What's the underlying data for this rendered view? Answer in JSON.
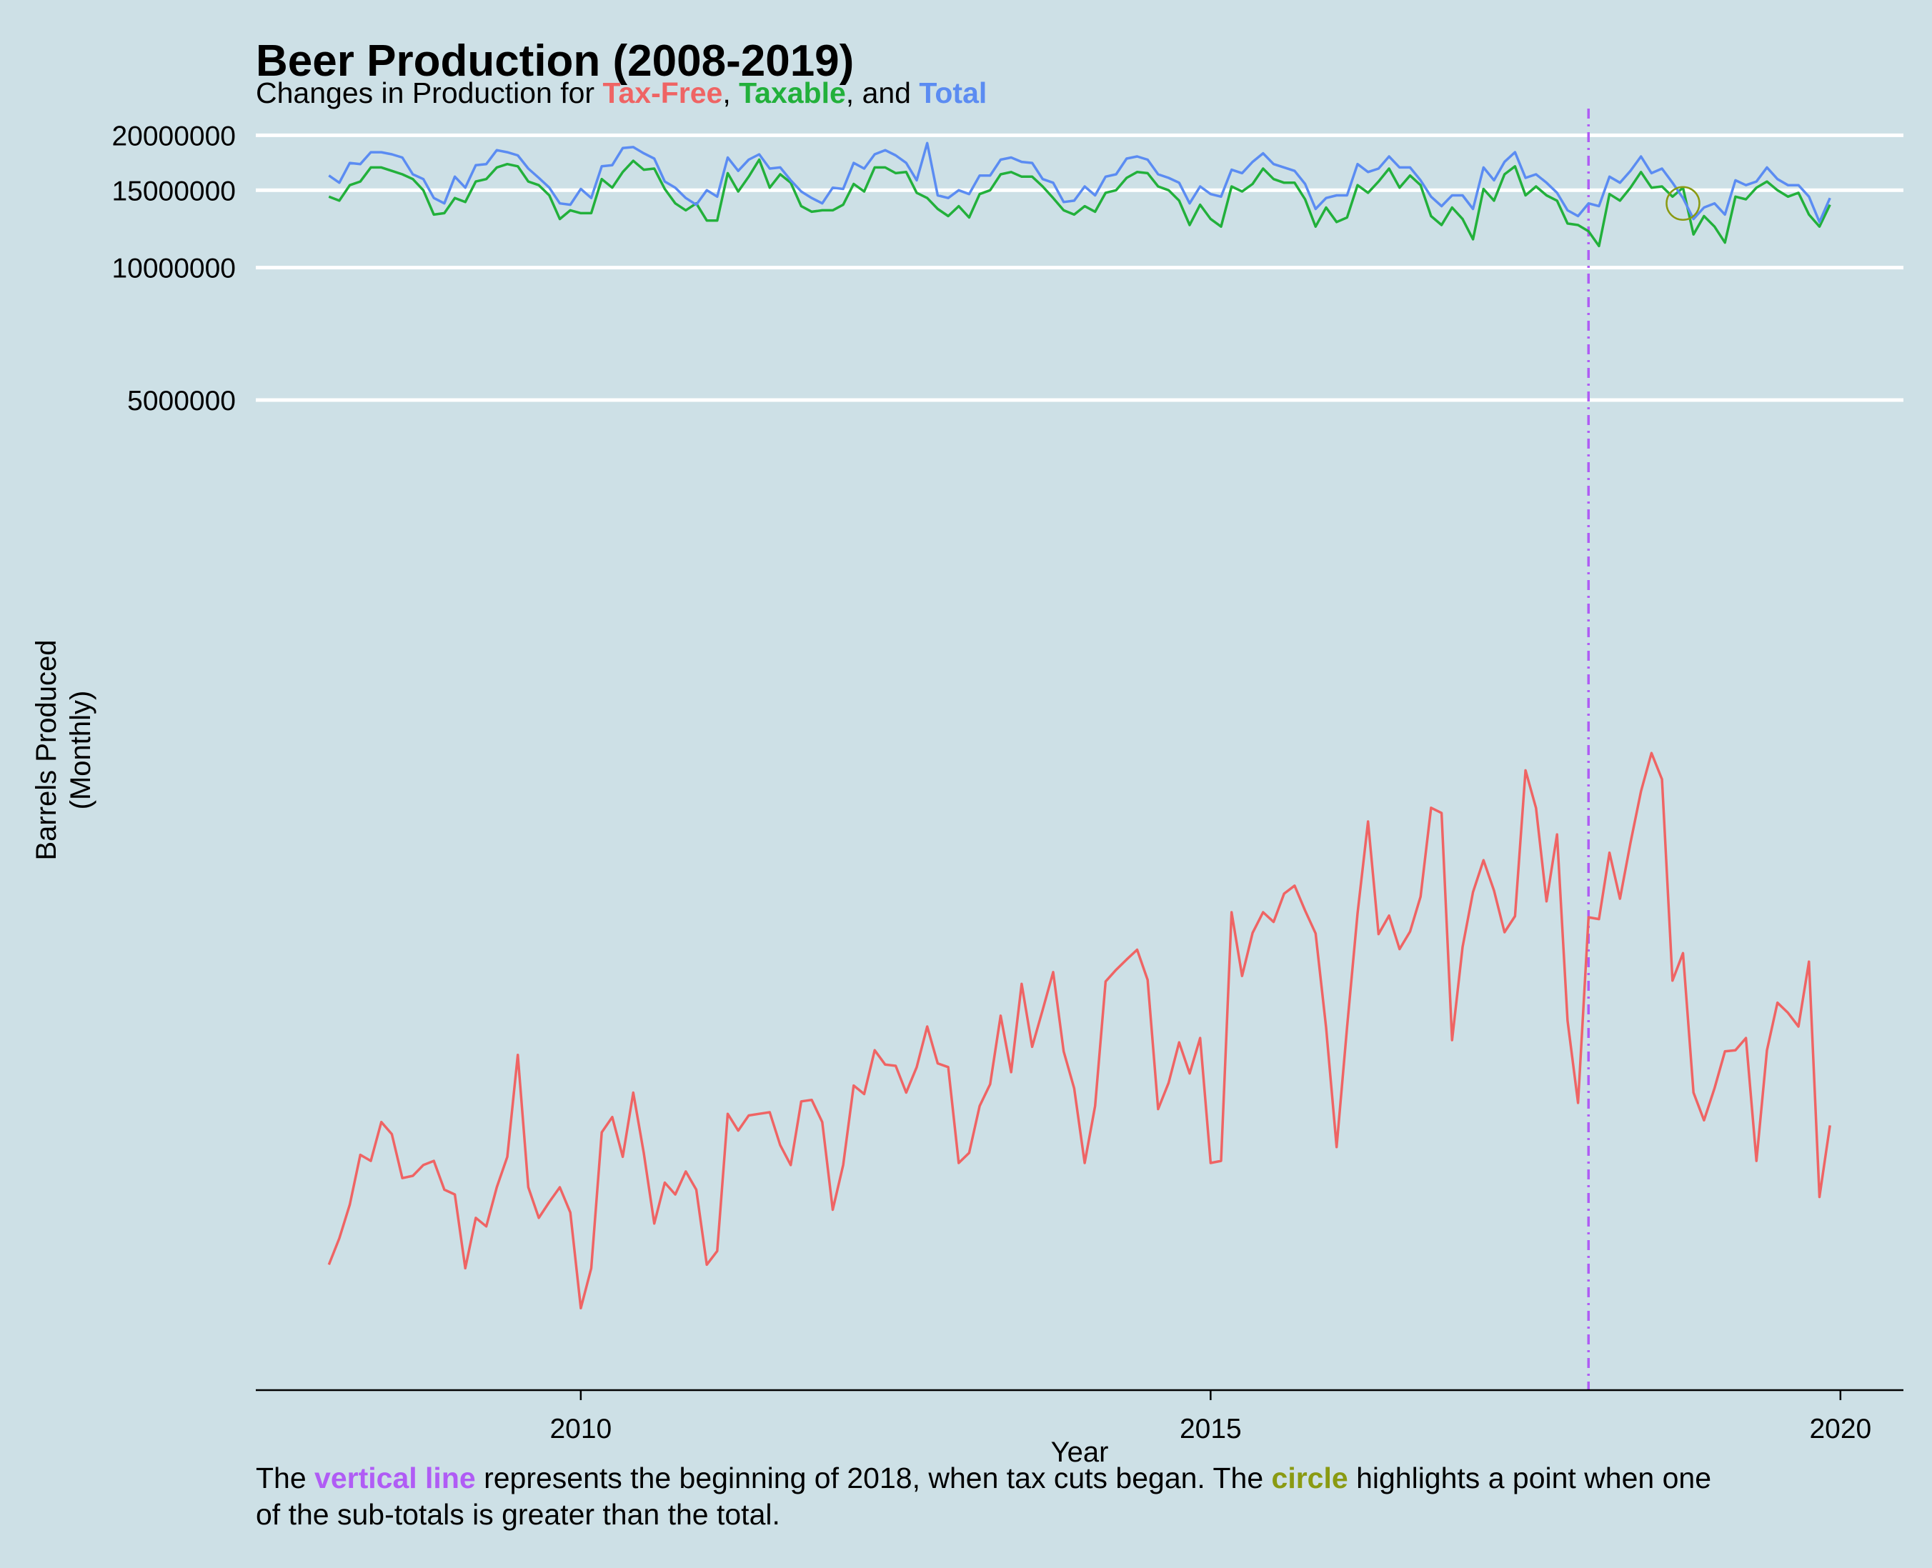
{
  "colors": {
    "background": "#cde0e6",
    "tax_free": "#ef6464",
    "taxable": "#22b03b",
    "total": "#5b8cf2",
    "vertical_line": "#b05cf5",
    "circle": "#8a9a12",
    "gridline": "#ffffff"
  },
  "header": {
    "title": "Beer Production (2008-2019)",
    "subtitle_prefix": "Changes in Production for ",
    "subtitle_taxfree": "Tax-Free",
    "subtitle_sep1": ", ",
    "subtitle_taxable": "Taxable",
    "subtitle_sep2": ", and ",
    "subtitle_total": "Total"
  },
  "caption": {
    "line1_a": "The ",
    "line1_vline": "vertical line",
    "line1_b": " represents the beginning of 2018, when tax cuts began. The ",
    "line1_circle": "circle",
    "line1_c": " highlights a point when one",
    "line2": "of the sub-totals is greater than the total."
  },
  "chart_data": {
    "type": "line",
    "xlabel": "Year",
    "ylabel_line1": "Barrels Produced",
    "ylabel_line2": "(Monthly)",
    "y_scale": "log",
    "ylim": [
      28000,
      23000000
    ],
    "xlim": [
      2007.42,
      2020.5
    ],
    "y_ticks": [
      {
        "value": 20000000,
        "label": "20000000"
      },
      {
        "value": 15000000,
        "label": "15000000"
      },
      {
        "value": 10000000,
        "label": "10000000"
      },
      {
        "value": 5000000,
        "label": "5000000"
      }
    ],
    "x_ticks": [
      {
        "value": 2010,
        "label": "2010"
      },
      {
        "value": 2015,
        "label": "2015"
      },
      {
        "value": 2020,
        "label": "2020"
      }
    ],
    "x_start": "2008-01",
    "x_end": "2019-12",
    "vertical_line": {
      "x": "2018-01",
      "style": "dotdash"
    },
    "highlight_circle": {
      "x": "2018-10",
      "y": 14000000
    },
    "grid": {
      "horizontal_major": true,
      "vertical": false
    },
    "series": [
      {
        "name": "Total",
        "color": "#5b8cf2",
        "values": [
          16200000,
          15600000,
          17300000,
          17200000,
          18300000,
          18300000,
          18100000,
          17800000,
          16300000,
          15900000,
          14400000,
          14000000,
          16100000,
          15200000,
          17100000,
          17200000,
          18500000,
          18300000,
          18000000,
          16800000,
          16000000,
          15200000,
          14000000,
          13900000,
          15100000,
          14400000,
          17000000,
          17100000,
          18700000,
          18800000,
          18200000,
          17700000,
          15700000,
          15200000,
          14400000,
          13900000,
          15000000,
          14500000,
          17800000,
          16600000,
          17600000,
          18100000,
          16800000,
          16900000,
          15800000,
          14900000,
          14400000,
          14000000,
          15200000,
          15100000,
          17300000,
          16800000,
          18100000,
          18500000,
          18000000,
          17300000,
          15800000,
          19200000,
          14600000,
          14400000,
          15000000,
          14700000,
          16200000,
          16200000,
          17600000,
          17800000,
          17400000,
          17300000,
          15900000,
          15600000,
          14100000,
          14200000,
          15300000,
          14600000,
          16100000,
          16300000,
          17700000,
          17900000,
          17600000,
          16300000,
          16000000,
          15600000,
          14000000,
          15300000,
          14700000,
          14500000,
          16700000,
          16400000,
          17400000,
          18200000,
          17200000,
          16900000,
          16600000,
          15500000,
          13600000,
          14400000,
          14600000,
          14600000,
          17200000,
          16500000,
          16800000,
          17900000,
          16900000,
          16900000,
          15800000,
          14500000,
          13800000,
          14600000,
          14600000,
          13600000,
          16900000,
          15800000,
          17400000,
          18300000,
          16000000,
          16300000,
          15600000,
          14800000,
          13500000,
          13100000,
          14000000,
          13800000,
          16100000,
          15600000,
          16600000,
          17900000,
          16400000,
          16800000,
          15600000,
          14400000,
          12900000,
          13700000,
          14000000,
          13200000,
          15800000,
          15400000,
          15700000,
          16900000,
          15900000,
          15400000,
          15400000,
          14500000,
          12700000,
          14400000
        ]
      },
      {
        "name": "Taxable",
        "color": "#22b03b",
        "values": [
          14500000,
          14200000,
          15400000,
          15700000,
          16900000,
          16900000,
          16600000,
          16300000,
          15900000,
          15000000,
          13200000,
          13300000,
          14400000,
          14100000,
          15700000,
          15900000,
          16900000,
          17200000,
          17000000,
          15700000,
          15400000,
          14600000,
          12900000,
          13500000,
          13300000,
          13300000,
          15900000,
          15200000,
          16500000,
          17500000,
          16700000,
          16800000,
          15100000,
          14000000,
          13500000,
          14000000,
          12800000,
          12800000,
          16400000,
          14900000,
          16100000,
          17600000,
          15200000,
          16300000,
          15600000,
          13800000,
          13400000,
          13500000,
          13500000,
          13900000,
          15500000,
          14900000,
          16900000,
          16900000,
          16400000,
          16500000,
          14800000,
          14400000,
          13600000,
          13100000,
          13800000,
          13000000,
          14700000,
          15000000,
          16300000,
          16500000,
          16100000,
          16100000,
          15300000,
          14400000,
          13500000,
          13200000,
          13800000,
          13400000,
          14800000,
          15000000,
          16000000,
          16500000,
          16400000,
          15300000,
          15000000,
          14200000,
          12500000,
          13900000,
          12900000,
          12400000,
          15300000,
          14900000,
          15500000,
          16800000,
          15900000,
          15600000,
          15600000,
          14300000,
          12400000,
          13700000,
          12700000,
          13000000,
          15400000,
          14800000,
          15700000,
          16800000,
          15200000,
          16200000,
          15400000,
          13100000,
          12500000,
          13700000,
          12900000,
          11600000,
          15100000,
          14200000,
          16300000,
          17000000,
          14600000,
          15300000,
          14600000,
          14200000,
          12600000,
          12500000,
          12100000,
          11200000,
          14700000,
          14200000,
          15200000,
          16500000,
          15200000,
          15300000,
          14500000,
          15200000,
          11900000,
          13100000,
          12400000,
          11400000,
          14500000,
          14300000,
          15200000,
          15700000,
          15000000,
          14500000,
          14800000,
          13200000,
          12400000,
          13900000
        ]
      },
      {
        "name": "Tax-Free",
        "color": "#ef6464",
        "values": [
          54000,
          62000,
          74000,
          96000,
          93000,
          114000,
          107000,
          85000,
          86000,
          91000,
          93000,
          80000,
          78000,
          53000,
          69000,
          66000,
          81000,
          95000,
          162000,
          81000,
          69000,
          75000,
          81000,
          71000,
          43000,
          53000,
          108000,
          117000,
          95000,
          133000,
          97000,
          67000,
          83000,
          78000,
          88000,
          80000,
          54000,
          58000,
          119000,
          109000,
          118000,
          119000,
          120000,
          101000,
          91000,
          127000,
          128000,
          114000,
          72000,
          91000,
          138000,
          132000,
          166000,
          154000,
          153000,
          133000,
          152000,
          188000,
          155000,
          152000,
          92000,
          97000,
          124000,
          139000,
          199000,
          148000,
          235000,
          169000,
          205000,
          250000,
          165000,
          136000,
          92000,
          124000,
          238000,
          253000,
          267000,
          281000,
          240000,
          122000,
          140000,
          173000,
          147000,
          177000,
          92000,
          93000,
          342000,
          245000,
          307000,
          342000,
          325000,
          377000,
          393000,
          345000,
          306000,
          187000,
          100000,
          187000,
          340000,
          550000,
          305000,
          336000,
          282000,
          309000,
          371000,
          591000,
          575000,
          175000,
          285000,
          380000,
          449000,
          383000,
          308000,
          335000,
          719000,
          590000,
          362000,
          514000,
          194000,
          126000,
          333000,
          330000,
          467000,
          367000,
          492000,
          644000,
          787000,
          686000,
          239000,
          276000,
          133000,
          115000,
          136000,
          165000,
          166000,
          177000,
          93000,
          166000,
          213000,
          202000,
          188000,
          264000,
          77000,
          112000
        ]
      }
    ]
  }
}
